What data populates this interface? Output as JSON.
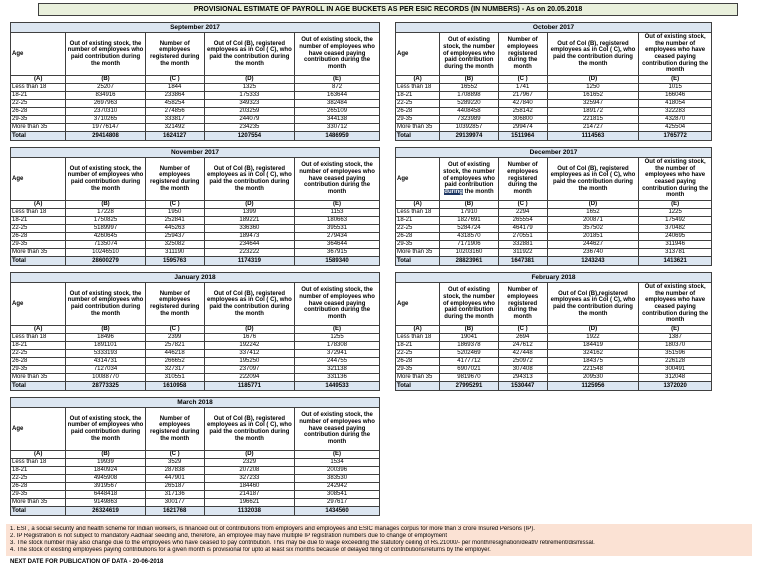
{
  "title": "PROVISIONAL ESTIMATE OF PAYROLL IN AGE BUCKETS AS PER ESIC RECORDS (IN NUMBERS) - As on 20.05.2018",
  "colors": {
    "title_bg": "#e9f0dc",
    "band_bg": "#dce6f1",
    "total_bg": "#dce6f1",
    "footnote_bg": "#fbe2d4",
    "highlight_bg": "#1f3864",
    "border": "#404040"
  },
  "age_header": "Age",
  "column_labels": [
    "(A)",
    "(B)",
    "(C )",
    "(D)",
    "(E)"
  ],
  "tables": [
    {
      "month": "September 2017",
      "side": "left",
      "col_headers": [
        "Out of existing stock, the number of employees who paid contribution during the month",
        "Number of employees registered during the month",
        "Out of Col (B), registered employees as in Col ( C), who paid the contribution during the month",
        "Out of existing stock, the number of employees who have ceased paying contribution during the month"
      ],
      "rows": [
        [
          "Less than 18",
          "25207",
          "1844",
          "1325",
          "872"
        ],
        [
          "18-21",
          "834916",
          "233864",
          "175333",
          "163644"
        ],
        [
          "22-25",
          "2697963",
          "458254",
          "349323",
          "382484"
        ],
        [
          "26-28",
          "2370310",
          "274856",
          "203259",
          "265109"
        ],
        [
          "29-35",
          "3710265",
          "333817",
          "244079",
          "344138"
        ],
        [
          "More than 35",
          "19776147",
          "321492",
          "234235",
          "330712"
        ]
      ],
      "total": [
        "Total",
        "29414808",
        "1624127",
        "1207554",
        "1486959"
      ]
    },
    {
      "month": "October 2017",
      "side": "right",
      "col_headers": [
        "Out of existing stock, the number of employees who paid contribution during the month",
        "Number of employees registered during the month",
        "Out of Col (B),  registered employees as in Col ( C), who paid the contribution during the month",
        "Out of existing stock, the number of employees who have ceased paying contribution during the month"
      ],
      "rows": [
        [
          "Less than 18",
          "16552",
          "1741",
          "1250",
          "1015"
        ],
        [
          "18-21",
          "1708898",
          "217967",
          "161652",
          "166046"
        ],
        [
          "22-25",
          "5289220",
          "427840",
          "325947",
          "418054"
        ],
        [
          "26-28",
          "4408458",
          "258142",
          "189172",
          "322283"
        ],
        [
          "29-35",
          "7323989",
          "306800",
          "221815",
          "432870"
        ],
        [
          "More than 35",
          "10392857",
          "299474",
          "214727",
          "425504"
        ]
      ],
      "total": [
        "Total",
        "29139974",
        "1511964",
        "1114563",
        "1765772"
      ]
    },
    {
      "month": "November 2017",
      "side": "left",
      "col_headers": [
        "Out of existing stock, the number of employees who paid contribution during the month",
        "Number of employees registered during the month",
        "Out of Col (B), registered employees as in Col ( C), who paid the contribution during the month",
        "Out of existing stock, the number of employees who have ceased paying contribution during the month"
      ],
      "rows": [
        [
          "Less than 18",
          "17228",
          "1950",
          "1399",
          "1153"
        ],
        [
          "18-21",
          "1750825",
          "252841",
          "189221",
          "180663"
        ],
        [
          "22-25",
          "5189997",
          "445263",
          "336360",
          "395531"
        ],
        [
          "26-28",
          "4260645",
          "259437",
          "189473",
          "279434"
        ],
        [
          "29-35",
          "7135074",
          "325082",
          "234644",
          "364644"
        ],
        [
          "More than 35",
          "10246510",
          "311190",
          "223222",
          "367915"
        ]
      ],
      "total": [
        "Total",
        "28600279",
        "1595763",
        "1174319",
        "1589340"
      ]
    },
    {
      "month": "December 2017",
      "side": "right",
      "col_headers": [
        "Out of existing stock, the number of employees who paid contribution during the month",
        "Number of employees registered during the month",
        "Out of Col (B), registered employees as in Col ( C), who paid the contribution during the month",
        "Out of existing stock, the number of employees who have ceased paying contribution during the month"
      ],
      "b_header_parts": {
        "pre": "Out of existing stock, the number of employees who paid contribution ",
        "highlight": "during",
        "post": " the month"
      },
      "rows": [
        [
          "Less than 18",
          "17910",
          "2294",
          "1652",
          "1225"
        ],
        [
          "18-21",
          "1827691",
          "265554",
          "200871",
          "175492"
        ],
        [
          "22-25",
          "5284724",
          "464179",
          "357502",
          "370482"
        ],
        [
          "26-28",
          "4318570",
          "270551",
          "201851",
          "240695"
        ],
        [
          "29-35",
          "7171906",
          "332881",
          "244627",
          "311946"
        ],
        [
          "More than 35",
          "10203160",
          "311922",
          "236740",
          "313781"
        ]
      ],
      "total": [
        "Total",
        "28823961",
        "1647381",
        "1243243",
        "1413621"
      ]
    },
    {
      "month": "January 2018",
      "side": "left",
      "col_headers": [
        "Out of existing stock, the number of employees who paid contribution during the month",
        "Number of employees registered during the month",
        "Out of Col (B), registered employees as in Col ( C), who paid the contribution during the month",
        "Out of existing stock, the number of employees who have ceased paying contribution during the month"
      ],
      "rows": [
        [
          "Less than 18",
          "18496",
          "2399",
          "1676",
          "1255"
        ],
        [
          "18-21",
          "1891101",
          "257821",
          "192242",
          "178308"
        ],
        [
          "22-25",
          "5333193",
          "446218",
          "337412",
          "372941"
        ],
        [
          "26-28",
          "4314731",
          "266652",
          "195250",
          "244755"
        ],
        [
          "29-35",
          "7127034",
          "327317",
          "237097",
          "321138"
        ],
        [
          "More than 35",
          "10088770",
          "310551",
          "222094",
          "331136"
        ]
      ],
      "total": [
        "Total",
        "28773325",
        "1610958",
        "1185771",
        "1449533"
      ]
    },
    {
      "month": "February 2018",
      "side": "right",
      "col_headers": [
        "Out of existing stock, the number of employees who paid contribution during the month",
        "Number of employees registered during the month",
        "Out of Col (B),registered employees as in Col ( C), who paid the contribution during the month",
        "Out of existing stock, the number of employees who have ceased paying contribution during the month"
      ],
      "rows": [
        [
          "Less than 18",
          "19041",
          "2694",
          "1922",
          "1387"
        ],
        [
          "18-21",
          "1869378",
          "247612",
          "184419",
          "180370"
        ],
        [
          "22-25",
          "5202469",
          "427448",
          "324162",
          "351596"
        ],
        [
          "26-28",
          "4177712",
          "250972",
          "184375",
          "226128"
        ],
        [
          "29-35",
          "6907021",
          "307408",
          "221548",
          "300491"
        ],
        [
          "More than 35",
          "9819670",
          "294313",
          "209530",
          "312048"
        ]
      ],
      "total": [
        "Total",
        "27995291",
        "1530447",
        "1125956",
        "1372020"
      ]
    },
    {
      "month": "March 2018",
      "side": "left",
      "col_headers": [
        "Out of existing stock, the number of employees who paid contribution during the month",
        "Number of employees registered during the month",
        "Out of Col (B), registered employees as in Col ( C), who paid the contribution during the month",
        "Out of existing stock, the number of employees who have ceased paying contribution during the month"
      ],
      "rows": [
        [
          "Less than 18",
          "19939",
          "3529",
          "2329",
          "1534"
        ],
        [
          "18-21",
          "1840924",
          "287838",
          "207208",
          "200396"
        ],
        [
          "22-25",
          "4945908",
          "447901",
          "327233",
          "383530"
        ],
        [
          "26-28",
          "3919567",
          "265187",
          "184460",
          "242942"
        ],
        [
          "29-35",
          "6448418",
          "317136",
          "214187",
          "308541"
        ],
        [
          "More than 35",
          "9149863",
          "300177",
          "196621",
          "297617"
        ]
      ],
      "total": [
        "Total",
        "26324619",
        "1621768",
        "1132038",
        "1434560"
      ]
    }
  ],
  "footnotes": [
    "1. ESI , a social security and health scheme for Indian workers, is financed out of contributions from employers and employees and ESIC manages corpus for more than 3 crore Insured Persons (IP).",
    "2. IP Registration is not subject to mandatory Aadhaar seeding and, therefore, an employee may have multiple IP registration numbers due to change of employment",
    "3. The stock number may also change due to the employees who have ceased to pay contribution. This may  be due to wage exceeding the statutory ceiling of  Rs.21000/- per month/resignation/death/ retirement/dismissal.",
    "4. The stock of existing employees paying contributions for a given month is provisional for upto at least six months because of delayed filing of contributions/returns by the employer."
  ],
  "next_date": "NEXT DATE FOR PUBLICATION OF DATA - 20-06-2018"
}
